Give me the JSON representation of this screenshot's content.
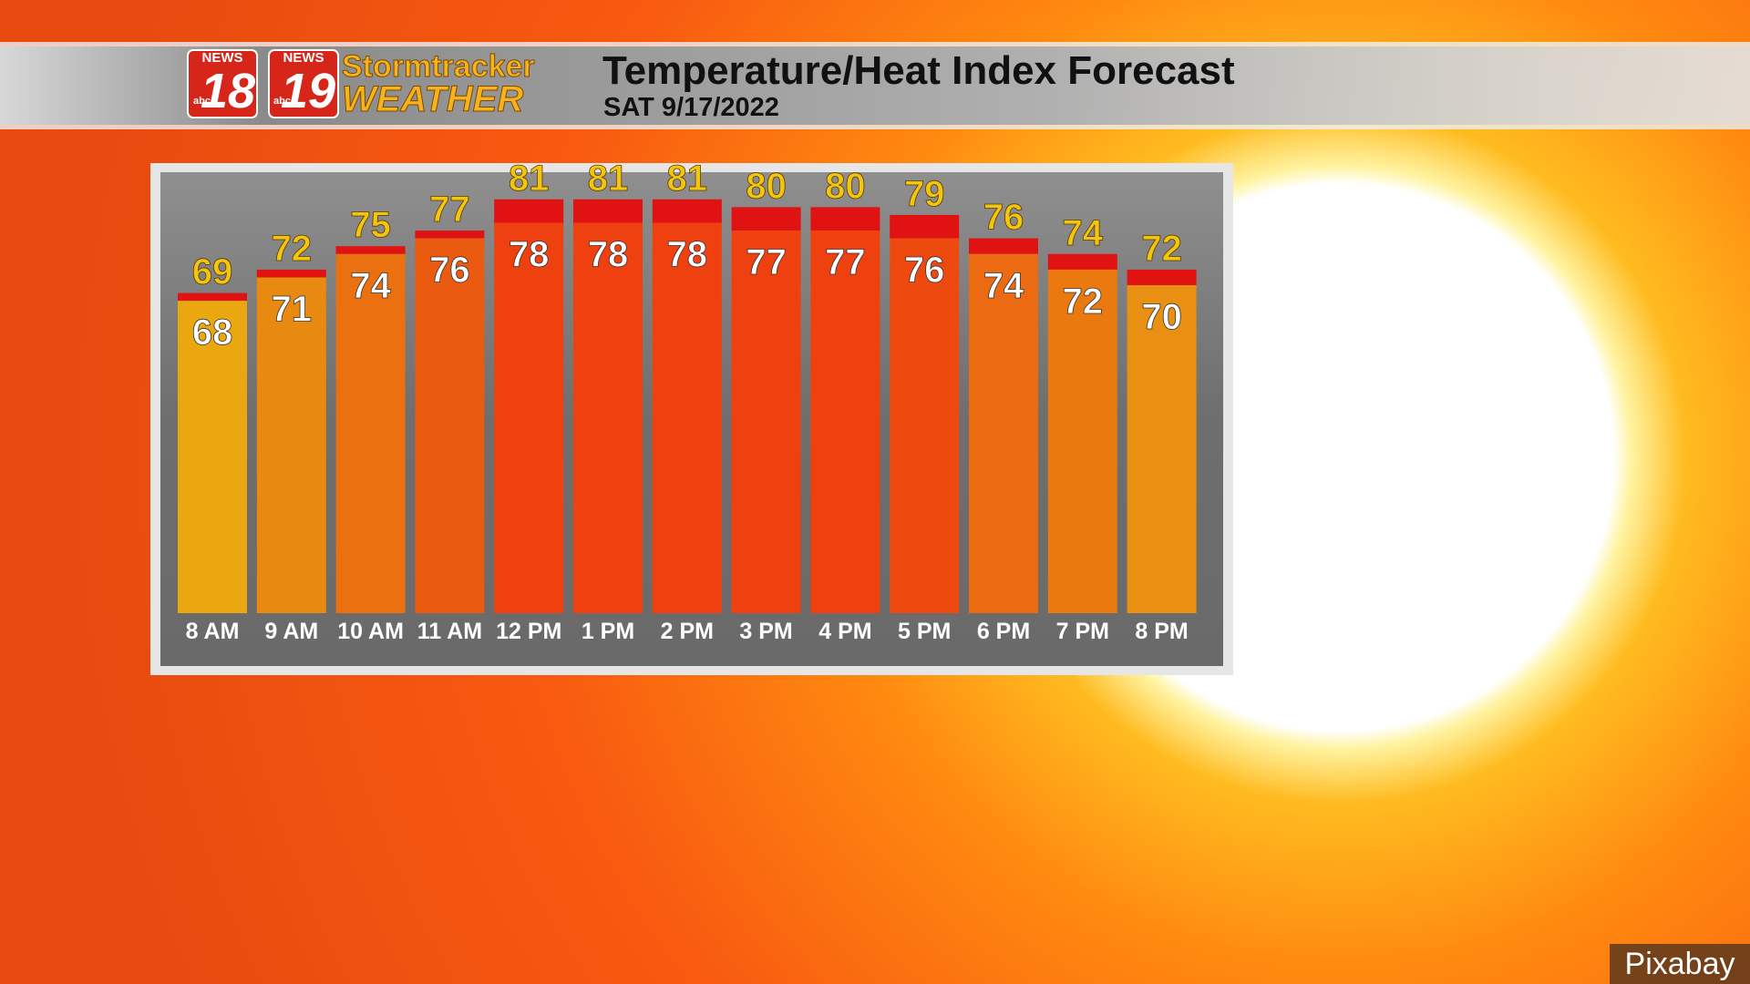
{
  "header": {
    "logo_left_news": "NEWS",
    "logo_left_number": "18",
    "logo_right_news": "NEWS",
    "logo_right_number": "19",
    "logo_network_left": "abc",
    "logo_network_right": "abc",
    "brand_top": "Stormtracker",
    "brand_bottom": "WEATHER"
  },
  "chart_data": {
    "type": "bar",
    "title": "Temperature/Heat Index Forecast",
    "subtitle": "SAT 9/17/2022",
    "categories": [
      "8 AM",
      "9 AM",
      "10 AM",
      "11 AM",
      "12 PM",
      "1 PM",
      "2 PM",
      "3 PM",
      "4 PM",
      "5 PM",
      "6 PM",
      "7 PM",
      "8 PM"
    ],
    "ylim": [
      28,
      90
    ],
    "series": [
      {
        "values": [
          68,
          71,
          74,
          76,
          78,
          78,
          78,
          77,
          77,
          76,
          74,
          72,
          70
        ],
        "label_color": "#ffffff",
        "colors": [
          "#eba70f",
          "#e98a10",
          "#ea7010",
          "#ea5a10",
          "#ef4010",
          "#ef4010",
          "#ef4010",
          "#ef4010",
          "#ef4010",
          "#ee4a10",
          "#ec6a12",
          "#ea7a10",
          "#e99012"
        ]
      },
      {
        "values": [
          69,
          72,
          75,
          77,
          81,
          81,
          81,
          80,
          80,
          79,
          76,
          74,
          72
        ],
        "label_color": "#f2c511",
        "color": "#e01212"
      }
    ]
  },
  "footer": {
    "credit": "Pixabay"
  }
}
